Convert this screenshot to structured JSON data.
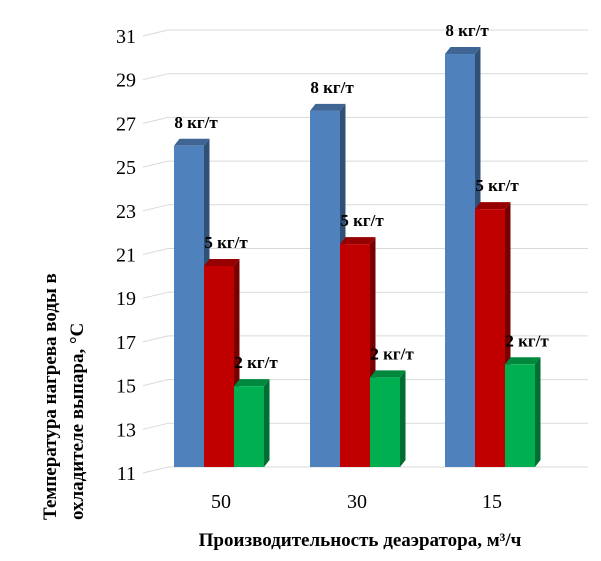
{
  "chart_data": {
    "type": "bar",
    "categories": [
      "50",
      "30",
      "15"
    ],
    "series": [
      {
        "name": "",
        "values": [
          25.7,
          27.3,
          29.9
        ],
        "labels": [
          "8 кг/т",
          "8 кг/т",
          "8 кг/т"
        ],
        "color": "#4f81bd"
      },
      {
        "name": "",
        "values": [
          20.2,
          21.2,
          22.8
        ],
        "labels": [
          "5 кг/т",
          "5 кг/т",
          "5 кг/т"
        ],
        "color": "#c00000"
      },
      {
        "name": "",
        "values": [
          14.7,
          15.1,
          15.7
        ],
        "labels": [
          "2 кг/т",
          "2 кг/т",
          "2 кг/т"
        ],
        "color": "#00b050"
      }
    ],
    "ylim": [
      11,
      31
    ],
    "yticks": [
      "11",
      "13",
      "15",
      "17",
      "19",
      "21",
      "23",
      "25",
      "27",
      "29",
      "31"
    ],
    "ylabel_line1": "Температура нагрева воды в",
    "ylabel_line2": "охладителе выпара, °С",
    "xlabel": "Производительность деаэратора, м³/ч",
    "grid": true,
    "legend": "none"
  }
}
